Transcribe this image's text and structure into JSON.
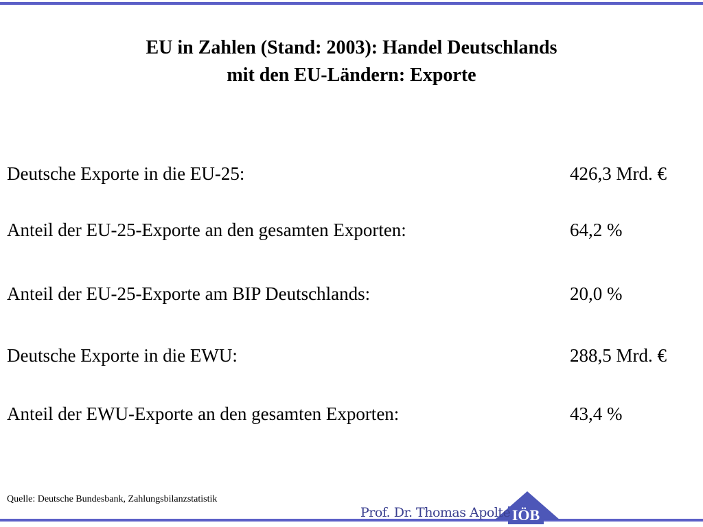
{
  "header": {
    "title": [
      "EU in Zahlen (Stand: 2003): Handel Deutschlands",
      "mit den EU-Ländern: Exporte"
    ]
  },
  "rows": [
    {
      "label": "Deutsche Exporte in die EU-25:",
      "value": "426,3 Mrd. €"
    },
    {
      "label": "Anteil der EU-25-Exporte an den gesamten Exporten:",
      "value": "64,2 %"
    },
    {
      "label": "Anteil der EU-25-Exporte am BIP Deutschlands:",
      "value": "20,0 %"
    },
    {
      "label": "Deutsche Exporte in die EWU:",
      "value": "288,5 Mrd. €"
    },
    {
      "label": "Anteil der EWU-Exporte an den gesamten Exporten:",
      "value": "43,4 %"
    }
  ],
  "source": "Quelle: Deutsche Bundesbank, Zahlungsbilanzstatistik",
  "footer": {
    "author": "Prof. Dr. Thomas Apolte",
    "logo": "IÖB"
  }
}
